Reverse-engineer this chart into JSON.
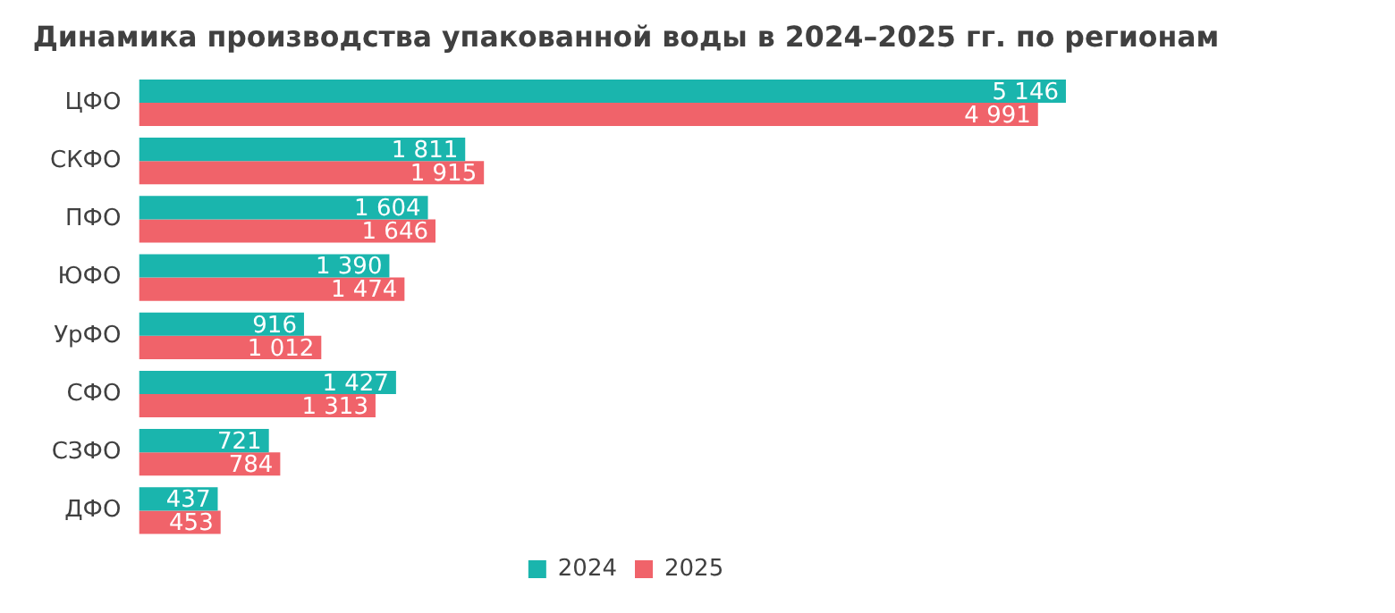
{
  "chart_data": {
    "type": "bar",
    "orientation": "horizontal",
    "title": "Динамика производства упакованной воды в 2024–2025 гг. по регионам",
    "categories": [
      "ЦФО",
      "СКФО",
      "ПФО",
      "ЮФО",
      "УрФО",
      "СФО",
      "СЗФО",
      "ДФО"
    ],
    "series": [
      {
        "name": "2024",
        "color": "#1ab5ad",
        "values": [
          5146,
          1811,
          1604,
          1390,
          916,
          1427,
          721,
          437
        ],
        "value_labels": [
          "5 146",
          "1 811",
          "1 604",
          "1 390",
          "916",
          "1 427",
          "721",
          "437"
        ]
      },
      {
        "name": "2025",
        "color": "#f0636a",
        "values": [
          4991,
          1915,
          1646,
          1474,
          1012,
          1313,
          784,
          453
        ],
        "value_labels": [
          "4 991",
          "1 915",
          "1 646",
          "1 474",
          "1 012",
          "1 313",
          "784",
          "453"
        ]
      }
    ],
    "legend": "bottom",
    "grid": false
  }
}
